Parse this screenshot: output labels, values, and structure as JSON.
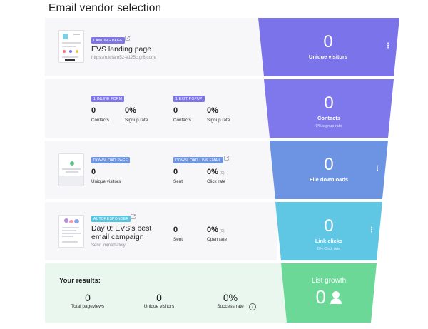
{
  "page_title": "Email vendor selection",
  "landing": {
    "badge": "LANDING PAGE",
    "title": "EVS landing page",
    "url": "https://rukham52-e125c.gr8.com/"
  },
  "forms": {
    "inline": {
      "badge": "1 INLINE FORM",
      "contacts_value": "0",
      "contacts_label": "Contacts",
      "signup_value": "0%",
      "signup_label": "Signup rate"
    },
    "exit": {
      "badge": "1 EXIT POPUP",
      "contacts_value": "0",
      "contacts_label": "Contacts",
      "signup_value": "0%",
      "signup_label": "Signup rate"
    }
  },
  "download": {
    "page_badge": "DOWNLOAD PAGE",
    "visitors_value": "0",
    "visitors_label": "Unique visitors",
    "email_badge": "DOWNLOAD LINK EMAIL",
    "sent_value": "0",
    "sent_label": "Sent",
    "click_value": "0%",
    "click_count": "(0)",
    "click_label": "Click rate"
  },
  "autoresponder": {
    "badge": "AUTORESPONDER",
    "title_line1": "Day 0: EVS's best",
    "title_line2": "email campaign",
    "schedule": "Send immediately",
    "sent_value": "0",
    "sent_label": "Sent",
    "open_value": "0%",
    "open_count": "(0)",
    "open_label": "Open rate"
  },
  "results": {
    "title": "Your results:",
    "pageviews_value": "0",
    "pageviews_label": "Total pageviews",
    "visitors_value": "0",
    "visitors_label": "Unique visitors",
    "success_value": "0%",
    "success_label": "Success rate",
    "info_glyph": "i"
  },
  "funnel": {
    "colors": {
      "stage1": "#7b73ea",
      "stage2": "#7f78ec",
      "stage3": "#6d94e3",
      "stage4": "#5fc6e4",
      "stage5": "#6bd897"
    },
    "stage1": {
      "value": "0",
      "label": "Unique visitors"
    },
    "stage2": {
      "value": "0",
      "label": "Contacts",
      "sub": "0% signup rate"
    },
    "stage3": {
      "value": "0",
      "label": "File downloads"
    },
    "stage4": {
      "value": "0",
      "label": "Link clicks",
      "sub": "0% Click rate"
    },
    "stage5": {
      "label": "List growth",
      "value": "0"
    },
    "menu_glyph": "⋮"
  }
}
